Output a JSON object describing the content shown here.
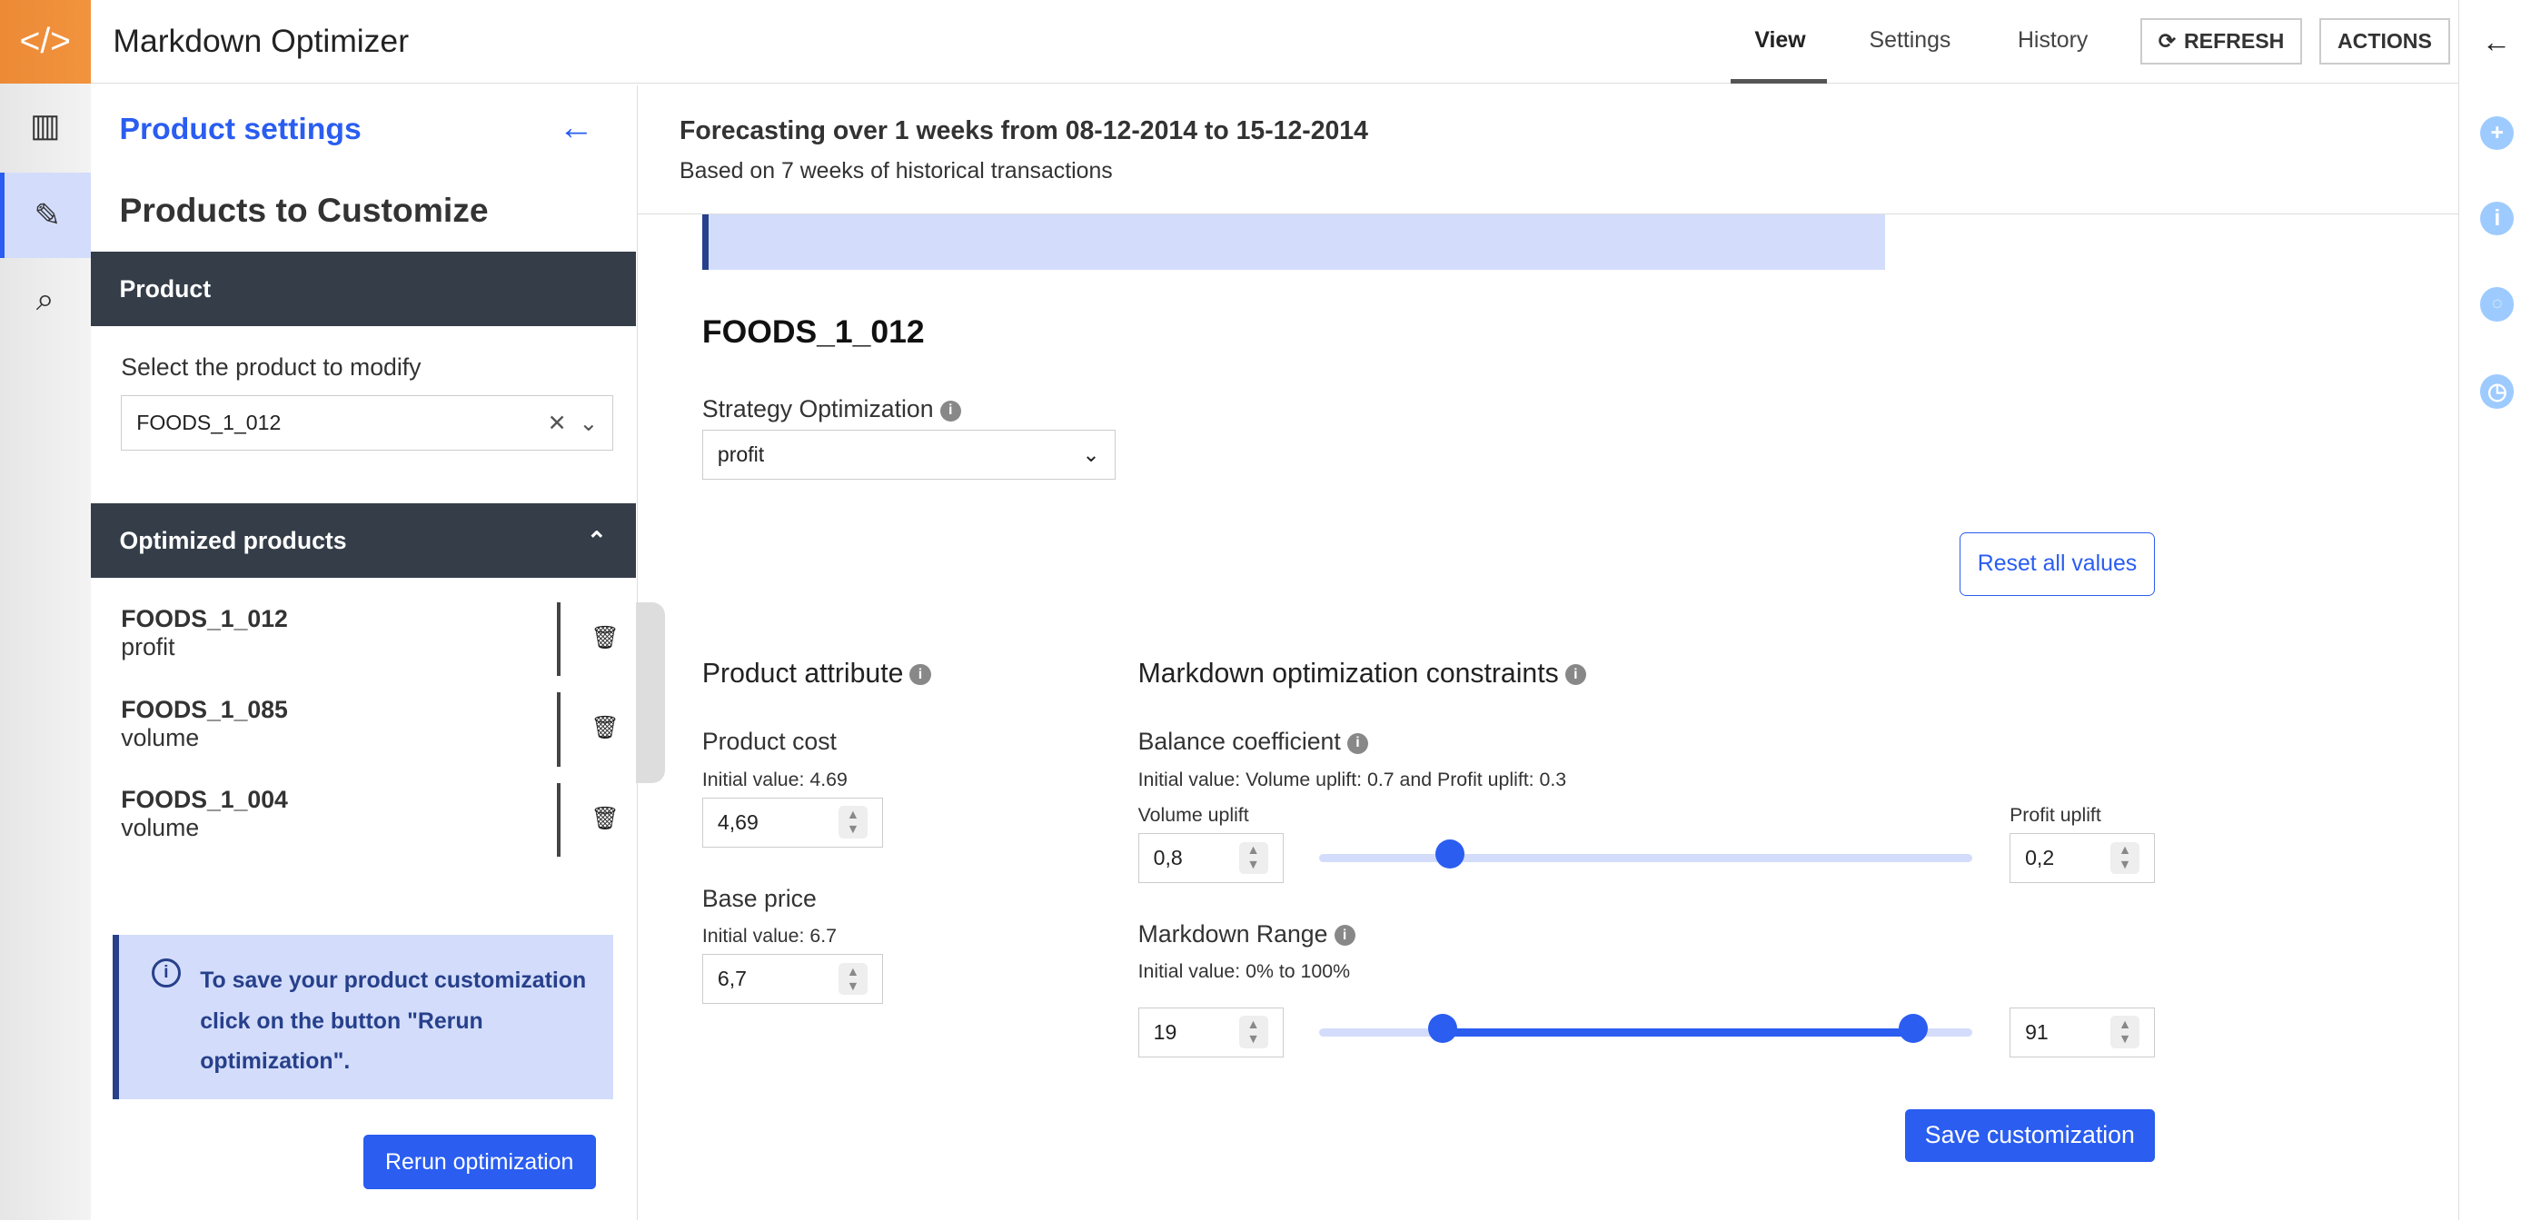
{
  "header": {
    "app_title": "Markdown Optimizer",
    "tabs": [
      {
        "label": "View",
        "active": true
      },
      {
        "label": "Settings"
      },
      {
        "label": "History"
      }
    ],
    "refresh_label": "REFRESH",
    "actions_label": "ACTIONS"
  },
  "left_panel": {
    "title": "Product settings",
    "subtitle": "Products to Customize",
    "product_section": "Product",
    "select_label": "Select the product to modify",
    "selected_product": "FOODS_1_012",
    "optimized_section": "Optimized products",
    "optimized": [
      {
        "name": "FOODS_1_012",
        "strategy": "profit"
      },
      {
        "name": "FOODS_1_085",
        "strategy": "volume"
      },
      {
        "name": "FOODS_1_004",
        "strategy": "volume"
      }
    ],
    "notice": "To save your product customization click on the button \"Rerun optimization\".",
    "rerun_label": "Rerun optimization"
  },
  "main": {
    "forecast_title": "Forecasting over 1 weeks from 08-12-2014 to 15-12-2014",
    "forecast_subtitle": "Based on 7 weeks of historical transactions",
    "product": "FOODS_1_012",
    "strategy_label": "Strategy Optimization",
    "strategy_value": "profit",
    "reset_label": "Reset all values",
    "attr_title": "Product attribute",
    "cost_label": "Product cost",
    "cost_initial": "Initial value: 4.69",
    "cost_value": "4,69",
    "price_label": "Base price",
    "price_initial": "Initial value: 6.7",
    "price_value": "6,7",
    "constraints_title": "Markdown optimization constraints",
    "balance_label": "Balance coefficient",
    "balance_initial": "Initial value: Volume uplift: 0.7 and Profit uplift: 0.3",
    "volume_label": "Volume uplift",
    "volume_value": "0,8",
    "profit_label": "Profit uplift",
    "profit_value": "0,2",
    "balance_fraction": 0.2,
    "range_label": "Markdown Range",
    "range_initial": "Initial value: 0% to 100%",
    "range_min": "19",
    "range_max": "91",
    "range_min_pct": 19,
    "range_max_pct": 91,
    "save_label": "Save customization"
  },
  "colors": {
    "accent": "#2a5df0",
    "brand": "#f08c3a",
    "dark": "#343d48"
  }
}
